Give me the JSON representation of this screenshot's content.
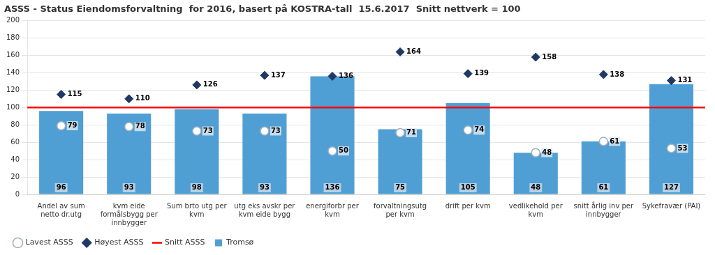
{
  "chart_data": {
    "type": "bar",
    "title": "ASSS - Status Eiendomsforvaltning  for 2016, basert på KOSTRA-tall  15.6.2017  Snitt nettverk = 100",
    "categories": [
      "Andel av sum\nnetto dr.utg",
      "kvm eide\nformålsbygg per\ninnbygger",
      "Sum brto utg per\nkvm",
      "utg eks avskr per\nkvm eide bygg",
      "energiforbr per\nkvm",
      "forvaltningsutg\nper kvm",
      "drift per kvm",
      "vedlikehold per\nkvm",
      "snitt årlig inv per\ninnbygger",
      "Sykefravær (PAI)"
    ],
    "series": [
      {
        "name": "Tromsø",
        "type": "bar",
        "color": "#4f9fd4",
        "values": [
          96,
          93,
          98,
          93,
          136,
          75,
          105,
          48,
          61,
          127
        ]
      },
      {
        "name": "Høyest ASSS",
        "type": "scatter",
        "marker": "diamond",
        "color": "#1f3864",
        "values": [
          115,
          110,
          126,
          137,
          136,
          164,
          139,
          158,
          138,
          131
        ]
      },
      {
        "name": "Lavest ASSS",
        "type": "scatter",
        "marker": "hollow_circle",
        "color": "#a0b0c0",
        "values": [
          79,
          78,
          73,
          73,
          50,
          71,
          74,
          48,
          61,
          53
        ]
      }
    ],
    "reference_line": {
      "name": "Snitt ASSS",
      "value": 100,
      "color": "#ff0000"
    },
    "ylim": [
      0,
      200
    ],
    "yticks": [
      0,
      20,
      40,
      60,
      80,
      100,
      120,
      140,
      160,
      180,
      200
    ],
    "grid": true,
    "legend": "bottom",
    "data_labels": true
  }
}
